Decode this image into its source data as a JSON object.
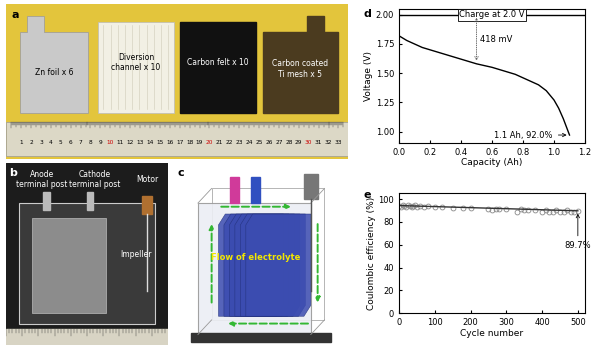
{
  "panels": {
    "a": {
      "label": "a",
      "items": [
        "Zn foil x 6",
        "Diversion\nchannel x 10",
        "Carbon felt x 10",
        "Carbon coated\nTi mesh x 5"
      ],
      "ruler_labels": [
        1,
        2,
        3,
        4,
        5,
        6,
        7,
        8,
        9,
        10,
        11,
        12,
        13,
        14,
        15,
        16,
        17,
        18,
        19,
        20,
        21,
        22,
        23,
        24,
        25,
        26,
        27,
        28,
        29,
        30,
        31,
        32,
        33
      ]
    },
    "b": {
      "label": "b",
      "texts": [
        "Anode\nterminal post",
        "Cathode\nterminal post",
        "Motor",
        "Impeller"
      ]
    },
    "c": {
      "label": "c",
      "texts": [
        "Flow of electrolyte"
      ]
    }
  },
  "chart_data": [
    {
      "panel": "d",
      "type": "line",
      "x_label": "Capacity (Ah)",
      "y_label": "Voltage (V)",
      "xlim": [
        0,
        1.2
      ],
      "ylim": [
        0.9,
        2.05
      ],
      "xticks": [
        {
          "value": 0,
          "label": "0.0"
        },
        0.2,
        0.4,
        0.6,
        0.8,
        1.0,
        1.2
      ],
      "yticks": [
        {
          "value": 1.0,
          "label": "1.00"
        },
        1.25,
        {
          "value": 1.5,
          "label": "1.50"
        },
        1.75,
        {
          "value": 2.0,
          "label": "2.00"
        }
      ],
      "series": [
        {
          "color": "#000000",
          "line_style": "solid",
          "x": [
            0,
            1.2
          ],
          "values": [
            2.0,
            2.0
          ]
        },
        {
          "color": "#000000",
          "line_style": "solid",
          "x": [
            0.0,
            0.05,
            0.1,
            0.15,
            0.2,
            0.25,
            0.3,
            0.35,
            0.4,
            0.45,
            0.5,
            0.55,
            0.6,
            0.65,
            0.7,
            0.75,
            0.8,
            0.85,
            0.9,
            0.95,
            1.0,
            1.03,
            1.06,
            1.08,
            1.1
          ],
          "values": [
            1.82,
            1.78,
            1.75,
            1.72,
            1.7,
            1.68,
            1.66,
            1.64,
            1.62,
            1.6,
            1.58,
            1.565,
            1.55,
            1.53,
            1.51,
            1.49,
            1.46,
            1.43,
            1.4,
            1.35,
            1.27,
            1.2,
            1.11,
            1.04,
            0.97
          ]
        }
      ],
      "annotations": [
        {
          "text": "Charge at 2.0 V",
          "x": 0.6,
          "y": 2.0
        },
        {
          "text": "418 mV",
          "x": 0.5,
          "y": [
            2.0,
            1.582
          ]
        },
        {
          "text": "1.1 Ah, 92.0%",
          "x": 1.1,
          "y": 0.97
        }
      ]
    },
    {
      "panel": "e",
      "type": "scatter",
      "x_label": "Cycle number",
      "y_label": "Coulombic efficiency (%)",
      "xlim": [
        0,
        520
      ],
      "ylim": [
        0,
        105
      ],
      "xticks": [
        0,
        100,
        200,
        300,
        400,
        500
      ],
      "yticks": [
        0,
        20,
        40,
        60,
        80,
        100
      ],
      "series": [
        {
          "type": "scatter",
          "marker": "o",
          "color": "#888888",
          "x": [
            1,
            5,
            10,
            15,
            20,
            25,
            30,
            35,
            40,
            45,
            50,
            60,
            70,
            80,
            100,
            120,
            150,
            180,
            200,
            250,
            260,
            270,
            280,
            300,
            330,
            340,
            350,
            360,
            380,
            400,
            410,
            420,
            430,
            440,
            450,
            460,
            470,
            480,
            490,
            500
          ],
          "values": [
            94,
            93,
            95,
            94,
            93,
            95,
            94,
            93,
            94,
            95,
            93,
            94,
            93,
            94,
            93,
            93,
            92,
            92,
            92,
            91,
            90,
            91,
            91,
            91,
            89,
            91,
            90,
            90,
            90,
            89,
            90,
            89,
            89,
            90,
            89,
            89,
            90,
            89,
            89,
            89.7
          ]
        },
        {
          "type": "line",
          "color": "#333333",
          "line_style": "solid",
          "x": [
            0,
            500
          ],
          "values": [
            94.3,
            89.7
          ]
        }
      ],
      "annotations": [
        {
          "text": "89.7%",
          "x": 500,
          "y": 89.7
        }
      ]
    }
  ]
}
